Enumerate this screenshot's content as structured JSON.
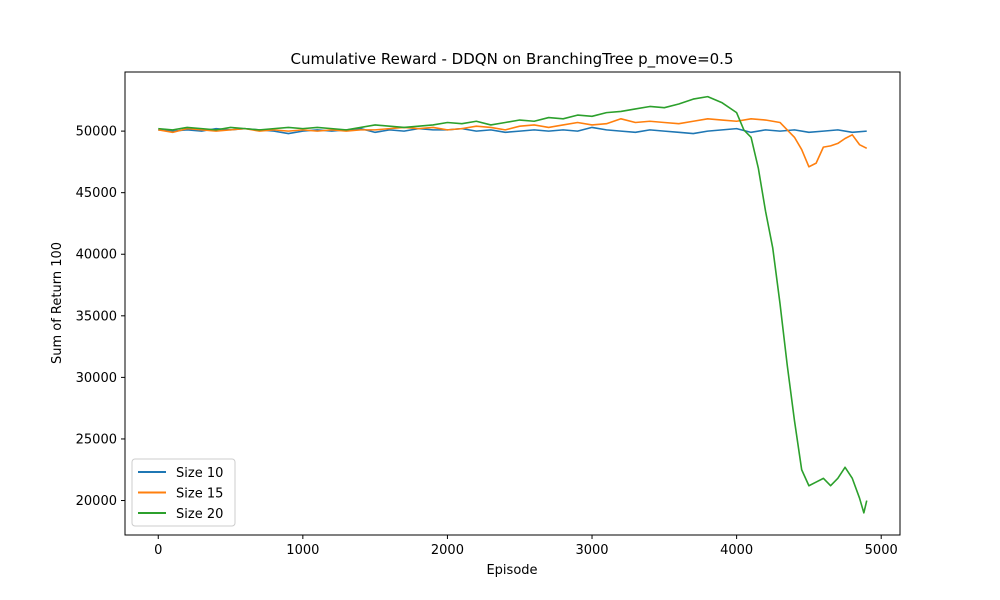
{
  "chart_data": {
    "type": "line",
    "title": "Cumulative Reward - DDQN on BranchingTree p_move=0.5",
    "xlabel": "Episode",
    "ylabel": "Sum of Return 100",
    "xlim": [
      -230,
      5130
    ],
    "ylim": [
      17200,
      54800
    ],
    "xticks": [
      0,
      1000,
      2000,
      3000,
      4000,
      5000
    ],
    "yticks": [
      20000,
      25000,
      30000,
      35000,
      40000,
      45000,
      50000
    ],
    "grid": false,
    "legend_position": "lower-left",
    "series": [
      {
        "name": "Size 10",
        "color": "#1f77b4",
        "x": [
          0,
          100,
          200,
          300,
          400,
          500,
          600,
          700,
          800,
          900,
          1000,
          1100,
          1200,
          1300,
          1400,
          1500,
          1600,
          1700,
          1800,
          1900,
          2000,
          2100,
          2200,
          2300,
          2400,
          2500,
          2600,
          2700,
          2800,
          2900,
          3000,
          3100,
          3200,
          3300,
          3400,
          3500,
          3600,
          3700,
          3800,
          3900,
          4000,
          4100,
          4200,
          4300,
          4400,
          4500,
          4600,
          4700,
          4800,
          4900
        ],
        "y": [
          50100,
          50000,
          50100,
          50000,
          50200,
          50100,
          50200,
          50100,
          50000,
          49800,
          50000,
          50100,
          50000,
          50100,
          50200,
          49900,
          50100,
          50000,
          50200,
          50100,
          50100,
          50200,
          50000,
          50100,
          49900,
          50000,
          50100,
          50000,
          50100,
          50000,
          50300,
          50100,
          50000,
          49900,
          50100,
          50000,
          49900,
          49800,
          50000,
          50100,
          50200,
          49900,
          50100,
          50000,
          50100,
          49900,
          50000,
          50100,
          49900,
          50000
        ]
      },
      {
        "name": "Size 15",
        "color": "#ff7f0e",
        "x": [
          0,
          100,
          200,
          300,
          400,
          500,
          600,
          700,
          800,
          900,
          1000,
          1100,
          1200,
          1300,
          1400,
          1500,
          1600,
          1700,
          1800,
          1900,
          2000,
          2100,
          2200,
          2300,
          2400,
          2500,
          2600,
          2700,
          2800,
          2900,
          3000,
          3100,
          3200,
          3300,
          3400,
          3500,
          3600,
          3700,
          3800,
          3900,
          4000,
          4100,
          4200,
          4300,
          4400,
          4450,
          4500,
          4550,
          4600,
          4650,
          4700,
          4750,
          4800,
          4850,
          4900
        ],
        "y": [
          50100,
          49900,
          50200,
          50100,
          50000,
          50100,
          50200,
          50000,
          50100,
          50000,
          50100,
          50000,
          50100,
          50000,
          50100,
          50100,
          50200,
          50300,
          50200,
          50300,
          50100,
          50200,
          50400,
          50300,
          50100,
          50400,
          50500,
          50300,
          50500,
          50700,
          50500,
          50600,
          51000,
          50700,
          50800,
          50700,
          50600,
          50800,
          51000,
          50900,
          50800,
          51000,
          50900,
          50700,
          49500,
          48500,
          47100,
          47400,
          48700,
          48800,
          49000,
          49400,
          49700,
          48900,
          48600
        ]
      },
      {
        "name": "Size 20",
        "color": "#2ca02c",
        "x": [
          0,
          100,
          200,
          300,
          400,
          500,
          600,
          700,
          800,
          900,
          1000,
          1100,
          1200,
          1300,
          1400,
          1500,
          1600,
          1700,
          1800,
          1900,
          2000,
          2100,
          2200,
          2300,
          2400,
          2500,
          2600,
          2700,
          2800,
          2900,
          3000,
          3100,
          3200,
          3300,
          3400,
          3500,
          3600,
          3700,
          3800,
          3900,
          4000,
          4050,
          4100,
          4150,
          4200,
          4250,
          4300,
          4350,
          4400,
          4450,
          4500,
          4550,
          4600,
          4650,
          4700,
          4750,
          4800,
          4850,
          4880,
          4900
        ],
        "y": [
          50200,
          50100,
          50300,
          50200,
          50100,
          50300,
          50200,
          50100,
          50200,
          50300,
          50200,
          50300,
          50200,
          50100,
          50300,
          50500,
          50400,
          50300,
          50400,
          50500,
          50700,
          50600,
          50800,
          50500,
          50700,
          50900,
          50800,
          51100,
          51000,
          51300,
          51200,
          51500,
          51600,
          51800,
          52000,
          51900,
          52200,
          52600,
          52800,
          52300,
          51500,
          50100,
          49500,
          47000,
          43500,
          40500,
          36000,
          31000,
          26500,
          22500,
          21200,
          21500,
          21800,
          21200,
          21800,
          22700,
          21800,
          20200,
          19000,
          20000
        ]
      }
    ]
  }
}
